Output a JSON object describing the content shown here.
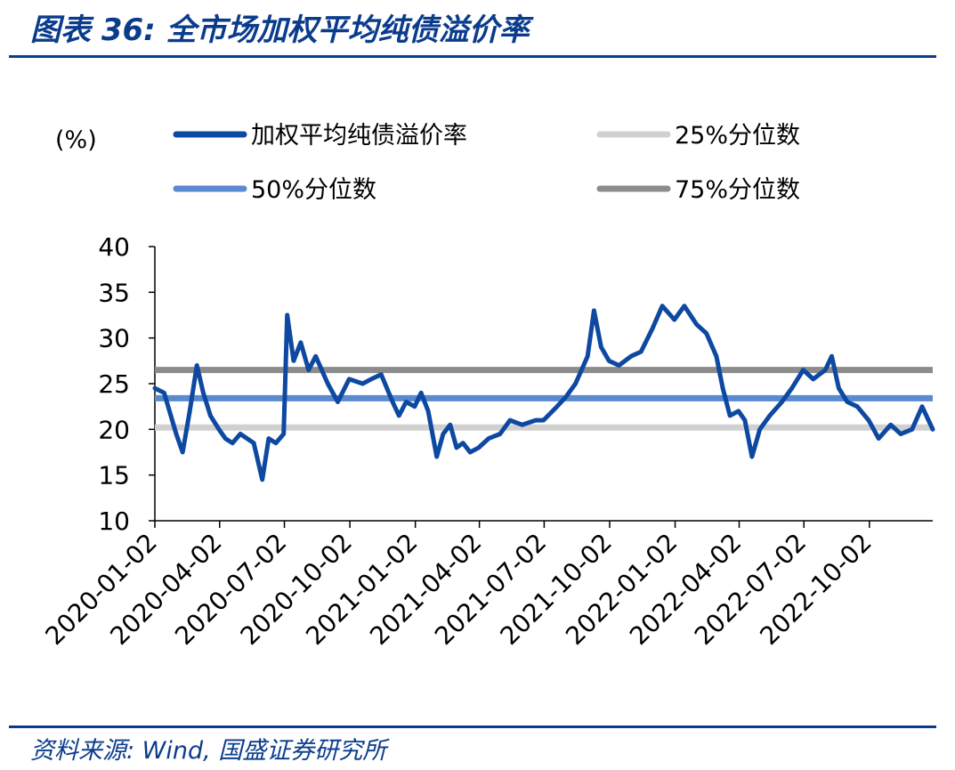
{
  "header": {
    "title": "图表 36:  全市场加权平均纯债溢价率"
  },
  "footer": {
    "source": "资料来源:  Wind,  国盛证券研究所"
  },
  "colors": {
    "main": "#0d48a1",
    "p25": "#d0d0d0",
    "p50": "#5a8ad0",
    "p75": "#8c8c8c",
    "brand": "#0b3c8c"
  },
  "chart_data": {
    "type": "line",
    "unit_label": "(%)",
    "ylim": [
      10,
      40
    ],
    "yticks": [
      10,
      15,
      20,
      25,
      30,
      35,
      40
    ],
    "x_range": [
      "2020-01-02",
      "2022-12-30"
    ],
    "xticks": [
      "2020-01-02",
      "2020-04-02",
      "2020-07-02",
      "2020-10-02",
      "2021-01-02",
      "2021-04-02",
      "2021-07-02",
      "2021-10-02",
      "2022-01-02",
      "2022-04-02",
      "2022-07-02",
      "2022-10-02"
    ],
    "legend": [
      "加权平均纯债溢价率",
      "25%分位数",
      "50%分位数",
      "75%分位数"
    ],
    "series": [
      {
        "name": "加权平均纯债溢价率",
        "x": [
          "2020-01-02",
          "2020-01-15",
          "2020-02-01",
          "2020-02-10",
          "2020-02-20",
          "2020-03-01",
          "2020-03-10",
          "2020-03-20",
          "2020-04-01",
          "2020-04-10",
          "2020-04-20",
          "2020-05-01",
          "2020-05-20",
          "2020-06-01",
          "2020-06-10",
          "2020-06-20",
          "2020-07-01",
          "2020-07-06",
          "2020-07-15",
          "2020-07-25",
          "2020-08-05",
          "2020-08-15",
          "2020-09-01",
          "2020-09-15",
          "2020-10-01",
          "2020-10-20",
          "2020-11-01",
          "2020-11-15",
          "2020-12-01",
          "2020-12-10",
          "2020-12-20",
          "2021-01-01",
          "2021-01-10",
          "2021-01-20",
          "2021-02-01",
          "2021-02-10",
          "2021-02-20",
          "2021-03-01",
          "2021-03-10",
          "2021-03-20",
          "2021-04-01",
          "2021-04-15",
          "2021-05-01",
          "2021-05-15",
          "2021-06-01",
          "2021-06-20",
          "2021-07-01",
          "2021-07-20",
          "2021-08-01",
          "2021-08-15",
          "2021-09-01",
          "2021-09-10",
          "2021-09-20",
          "2021-10-01",
          "2021-10-15",
          "2021-11-01",
          "2021-11-15",
          "2021-12-01",
          "2021-12-15",
          "2022-01-01",
          "2022-01-15",
          "2022-02-01",
          "2022-02-15",
          "2022-03-01",
          "2022-03-10",
          "2022-03-20",
          "2022-04-01",
          "2022-04-10",
          "2022-04-20",
          "2022-05-01",
          "2022-05-15",
          "2022-06-01",
          "2022-06-15",
          "2022-07-01",
          "2022-07-15",
          "2022-08-01",
          "2022-08-10",
          "2022-08-20",
          "2022-09-01",
          "2022-09-15",
          "2022-10-01",
          "2022-10-15",
          "2022-11-01",
          "2022-11-15",
          "2022-12-01",
          "2022-12-15",
          "2022-12-30"
        ],
        "values": [
          24.5,
          24.0,
          19.5,
          17.5,
          22.0,
          27.0,
          24.0,
          21.5,
          20.0,
          19.0,
          18.5,
          19.5,
          18.5,
          14.5,
          19.0,
          18.5,
          19.5,
          32.5,
          27.5,
          29.5,
          26.5,
          28.0,
          25.0,
          23.0,
          25.5,
          25.0,
          25.5,
          26.0,
          23.0,
          21.5,
          23.0,
          22.5,
          24.0,
          22.0,
          17.0,
          19.5,
          20.5,
          18.0,
          18.5,
          17.5,
          18.0,
          19.0,
          19.5,
          21.0,
          20.5,
          21.0,
          21.0,
          22.5,
          23.5,
          25.0,
          28.0,
          33.0,
          29.0,
          27.5,
          27.0,
          28.0,
          28.5,
          31.0,
          33.5,
          32.0,
          33.5,
          31.5,
          30.5,
          28.0,
          24.5,
          21.5,
          22.0,
          21.0,
          17.0,
          20.0,
          21.5,
          23.0,
          24.5,
          26.5,
          25.5,
          26.5,
          28.0,
          24.5,
          23.0,
          22.5,
          21.0,
          19.0,
          20.5,
          19.5,
          20.0,
          22.5,
          20.0
        ]
      },
      {
        "name": "25%分位数",
        "constant": 20.2
      },
      {
        "name": "50%分位数",
        "constant": 23.4
      },
      {
        "name": "75%分位数",
        "constant": 26.5
      }
    ]
  }
}
